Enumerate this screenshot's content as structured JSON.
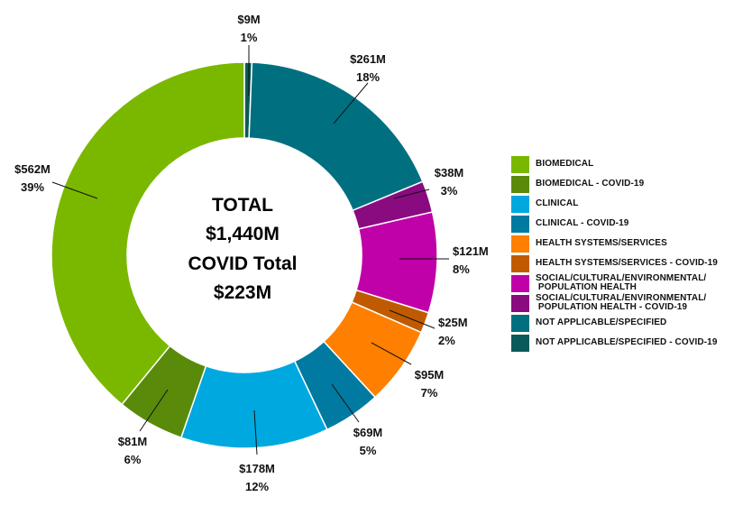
{
  "chart_data": {
    "type": "pie",
    "donut": true,
    "center_text": [
      "TOTAL",
      "$1,440M",
      "COVID Total",
      "$223M"
    ],
    "slices": [
      {
        "name": "NOT APPLICABLE/SPECIFIED - COVID-19",
        "amount": "$9M",
        "percent": "1%",
        "value": 9,
        "color": "#0a5a5a"
      },
      {
        "name": "NOT APPLICABLE/SPECIFIED",
        "amount": "$261M",
        "percent": "18%",
        "value": 261,
        "color": "#007080"
      },
      {
        "name": "SOCIAL/CULTURAL/ENVIRONMENTAL/ POPULATION HEALTH - COVID-19",
        "amount": "$38M",
        "percent": "3%",
        "value": 38,
        "color": "#8a0a80"
      },
      {
        "name": "SOCIAL/CULTURAL/ENVIRONMENTAL/ POPULATION HEALTH",
        "amount": "$121M",
        "percent": "8%",
        "value": 121,
        "color": "#c000a8"
      },
      {
        "name": "HEALTH SYSTEMS/SERVICES - COVID-19",
        "amount": "$25M",
        "percent": "2%",
        "value": 25,
        "color": "#c05a00"
      },
      {
        "name": "HEALTH SYSTEMS/SERVICES",
        "amount": "$95M",
        "percent": "7%",
        "value": 95,
        "color": "#ff7f00"
      },
      {
        "name": "CLINICAL - COVID-19",
        "amount": "$69M",
        "percent": "5%",
        "value": 69,
        "color": "#007aa0"
      },
      {
        "name": "CLINICAL",
        "amount": "$178M",
        "percent": "12%",
        "value": 178,
        "color": "#00a8e0"
      },
      {
        "name": "BIOMEDICAL - COVID-19",
        "amount": "$81M",
        "percent": "6%",
        "value": 81,
        "color": "#5a8a0a"
      },
      {
        "name": "BIOMEDICAL",
        "amount": "$562M",
        "percent": "39%",
        "value": 562,
        "color": "#7ab800"
      }
    ],
    "legend": [
      {
        "label": "BIOMEDICAL",
        "color": "#7ab800"
      },
      {
        "label": "BIOMEDICAL - COVID-19",
        "color": "#5a8a0a"
      },
      {
        "label": "CLINICAL",
        "color": "#00a8e0"
      },
      {
        "label": "CLINICAL - COVID-19",
        "color": "#007aa0"
      },
      {
        "label": "HEALTH SYSTEMS/SERVICES",
        "color": "#ff7f00"
      },
      {
        "label": "HEALTH SYSTEMS/SERVICES - COVID-19",
        "color": "#c05a00"
      },
      {
        "label": "SOCIAL/CULTURAL/ENVIRONMENTAL/",
        "label2": "POPULATION HEALTH",
        "color": "#c000a8"
      },
      {
        "label": "SOCIAL/CULTURAL/ENVIRONMENTAL/",
        "label2": "POPULATION HEALTH - COVID-19",
        "color": "#8a0a80"
      },
      {
        "label": "NOT APPLICABLE/SPECIFIED",
        "color": "#007080"
      },
      {
        "label": "NOT APPLICABLE/SPECIFIED - COVID-19",
        "color": "#0a5a5a"
      }
    ],
    "legend_position": "right"
  }
}
